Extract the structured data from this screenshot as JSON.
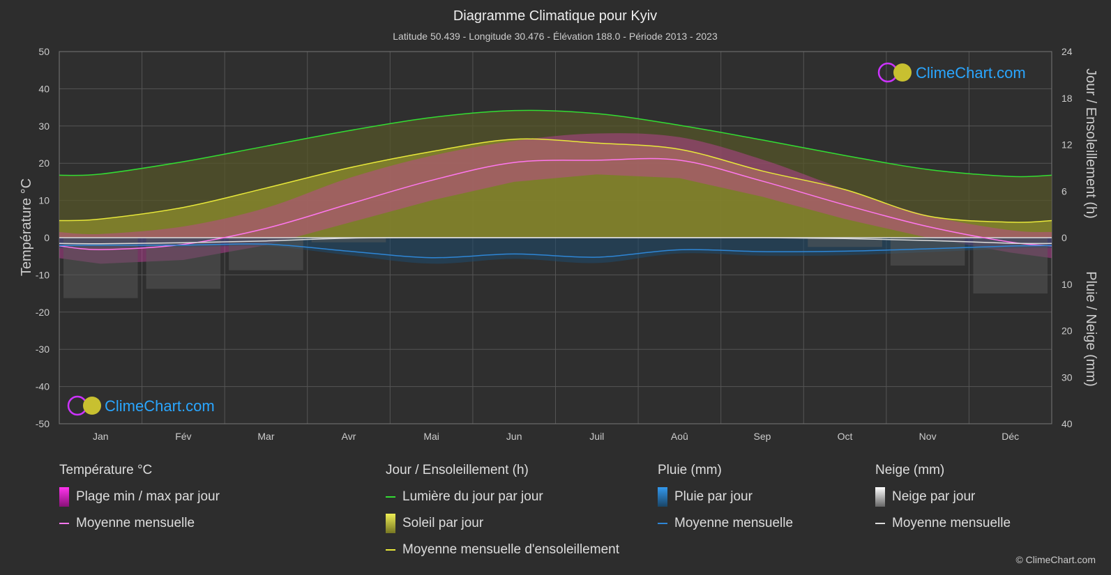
{
  "header": {
    "title": "Diagramme Climatique pour Kyiv",
    "subtitle": "Latitude 50.439 - Longitude 30.476 - Élévation 188.0 - Période 2013 - 2023"
  },
  "logo": {
    "text": "ClimeChart.com"
  },
  "copyright": "© ClimeChart.com",
  "chart_data": {
    "type": "line",
    "categories": [
      "Jan",
      "Fév",
      "Mar",
      "Avr",
      "Mai",
      "Jun",
      "Juil",
      "Aoû",
      "Sep",
      "Oct",
      "Nov",
      "Déc"
    ],
    "y_left": {
      "label": "Température °C",
      "range": [
        -50,
        50
      ],
      "ticks": [
        50,
        40,
        30,
        20,
        10,
        0,
        -10,
        -20,
        -30,
        -40,
        -50
      ]
    },
    "y_right_top": {
      "label": "Jour / Ensoleillement (h)",
      "range": [
        0,
        24
      ],
      "ticks": [
        24,
        18,
        12,
        6,
        0
      ]
    },
    "y_right_bottom": {
      "label": "Pluie / Neige (mm)",
      "range": [
        0,
        40
      ],
      "ticks": [
        0,
        10,
        20,
        30,
        40
      ]
    },
    "grid": true,
    "series": [
      {
        "name": "Lumière du jour par jour",
        "unit": "h",
        "color": "#33dd33",
        "values": [
          8.2,
          9.8,
          11.8,
          13.8,
          15.5,
          16.4,
          16.0,
          14.5,
          12.6,
          10.6,
          8.8,
          7.9
        ]
      },
      {
        "name": "Moyenne mensuelle d'ensoleillement",
        "unit": "h",
        "color": "#e8e83a",
        "values": [
          2.4,
          3.9,
          6.4,
          9.0,
          11.1,
          12.7,
          12.2,
          11.4,
          8.6,
          6.2,
          2.8,
          2.0
        ]
      },
      {
        "name": "Température Moyenne mensuelle",
        "unit": "°C",
        "color": "#ff77ee",
        "values": [
          -3.2,
          -1.8,
          2.5,
          9.0,
          15.4,
          20.2,
          20.8,
          20.8,
          15.2,
          8.8,
          3.0,
          -1.2
        ]
      },
      {
        "name": "Pluie Moyenne mensuelle",
        "unit": "mm",
        "color": "#2e86d6",
        "values": [
          1.6,
          1.6,
          1.4,
          2.9,
          4.3,
          3.5,
          4.2,
          2.6,
          3.0,
          2.9,
          2.4,
          1.8
        ]
      },
      {
        "name": "Neige Moyenne mensuelle",
        "unit": "mm",
        "color": "#dddddd",
        "values": [
          1.3,
          1.1,
          0.7,
          0.1,
          0,
          0,
          0,
          0,
          0,
          0.2,
          0.6,
          1.2
        ]
      },
      {
        "name": "Plage min / max par jour",
        "unit": "°C",
        "color": "#cc44aa",
        "min": [
          -7,
          -6,
          -2,
          4,
          10,
          15,
          17,
          16,
          11,
          5,
          0,
          -4
        ],
        "max": [
          1,
          3,
          8,
          16,
          22,
          26,
          28,
          27,
          21,
          13,
          6,
          2
        ]
      }
    ]
  },
  "legend": {
    "temperature": {
      "title": "Température °C",
      "items": [
        {
          "label": "Plage min / max par jour",
          "color": "#dd33cc"
        },
        {
          "label": "Moyenne mensuelle",
          "color": "#ff77ee"
        }
      ]
    },
    "sun": {
      "title": "Jour / Ensoleillement (h)",
      "items": [
        {
          "label": "Lumière du jour par jour",
          "color": "#33dd33"
        },
        {
          "label": "Soleil par jour",
          "color": "#c8c83a"
        },
        {
          "label": "Moyenne mensuelle d'ensoleillement",
          "color": "#e8e83a"
        }
      ]
    },
    "rain": {
      "title": "Pluie (mm)",
      "items": [
        {
          "label": "Pluie par jour",
          "color": "#2e86d6"
        },
        {
          "label": "Moyenne mensuelle",
          "color": "#2e86d6"
        }
      ]
    },
    "snow": {
      "title": "Neige (mm)",
      "items": [
        {
          "label": "Neige par jour",
          "color": "#bbbbbb"
        },
        {
          "label": "Moyenne mensuelle",
          "color": "#dddddd"
        }
      ]
    }
  }
}
